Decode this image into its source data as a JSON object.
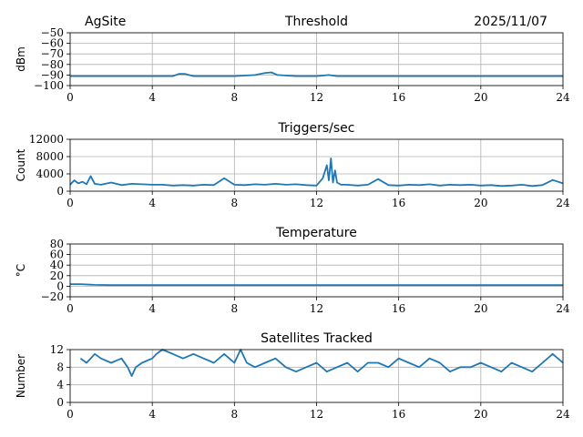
{
  "header": {
    "site": "AgSite",
    "date": "2025/11/07"
  },
  "series_color": "#1f77b4",
  "chart_data": [
    {
      "type": "line",
      "title": "Threshold",
      "ylabel": "dBm",
      "xlim": [
        0,
        24
      ],
      "ylim": [
        -100,
        -50
      ],
      "x_ticks": [
        0,
        4,
        8,
        12,
        16,
        20,
        24
      ],
      "y_ticks": [
        -100,
        -90,
        -80,
        -70,
        -60,
        -50
      ],
      "grid": true,
      "series": [
        {
          "x": [
            0,
            1,
            2,
            3,
            4,
            5,
            5.3,
            5.6,
            6,
            7,
            8,
            9,
            9.5,
            9.8,
            10.1,
            11,
            12,
            12.6,
            13,
            14,
            15,
            16,
            17,
            18,
            19,
            20,
            21,
            22,
            23,
            24
          ],
          "values": [
            -91,
            -91,
            -91,
            -91,
            -91,
            -91,
            -89,
            -89,
            -91,
            -91,
            -91,
            -90,
            -88,
            -87.5,
            -90,
            -91,
            -91,
            -90,
            -91,
            -91,
            -91,
            -91,
            -91,
            -91,
            -91,
            -91,
            -91,
            -91,
            -91,
            -91
          ]
        }
      ]
    },
    {
      "type": "line",
      "title": "Triggers/sec",
      "ylabel": "Count",
      "xlim": [
        0,
        24
      ],
      "ylim": [
        0,
        12000
      ],
      "x_ticks": [
        0,
        4,
        8,
        12,
        16,
        20,
        24
      ],
      "y_ticks": [
        0,
        4000,
        8000,
        12000
      ],
      "grid": true,
      "series": [
        {
          "x": [
            0,
            0.2,
            0.4,
            0.6,
            0.8,
            1,
            1.2,
            1.5,
            2,
            2.5,
            3,
            3.5,
            4,
            4.5,
            5,
            5.5,
            6,
            6.5,
            7,
            7.5,
            8,
            8.5,
            9,
            9.5,
            10,
            10.5,
            11,
            11.5,
            12,
            12.3,
            12.5,
            12.6,
            12.7,
            12.8,
            12.9,
            13,
            13.2,
            13.5,
            14,
            14.5,
            15,
            15.5,
            16,
            16.5,
            17,
            17.5,
            18,
            18.5,
            19,
            19.5,
            20,
            20.5,
            21,
            21.5,
            22,
            22.5,
            23,
            23.5,
            24
          ],
          "values": [
            1500,
            2500,
            1800,
            2200,
            1600,
            3500,
            1700,
            1500,
            2000,
            1400,
            1700,
            1600,
            1500,
            1500,
            1300,
            1400,
            1300,
            1500,
            1400,
            3000,
            1500,
            1400,
            1600,
            1500,
            1700,
            1500,
            1600,
            1400,
            1300,
            3000,
            6000,
            2500,
            7600,
            2000,
            4800,
            2000,
            1500,
            1500,
            1300,
            1500,
            2800,
            1400,
            1300,
            1500,
            1400,
            1600,
            1300,
            1500,
            1400,
            1500,
            1300,
            1400,
            1200,
            1300,
            1500,
            1200,
            1400,
            2600,
            1800
          ]
        }
      ]
    },
    {
      "type": "line",
      "title": "Temperature",
      "ylabel": "°C",
      "xlim": [
        0,
        24
      ],
      "ylim": [
        -20,
        80
      ],
      "x_ticks": [
        0,
        4,
        8,
        12,
        16,
        20,
        24
      ],
      "y_ticks": [
        -20,
        0,
        20,
        40,
        60,
        80
      ],
      "grid": true,
      "series": [
        {
          "x": [
            0,
            0.5,
            1,
            1.2,
            2,
            4,
            8,
            12,
            16,
            20,
            24
          ],
          "values": [
            4,
            4,
            3,
            2.5,
            2,
            2,
            2,
            2,
            2,
            2,
            2
          ]
        }
      ]
    },
    {
      "type": "line",
      "title": "Satellites Tracked",
      "ylabel": "Number",
      "xlim": [
        0,
        24
      ],
      "ylim": [
        0,
        12
      ],
      "x_ticks": [
        0,
        4,
        8,
        12,
        16,
        20,
        24
      ],
      "y_ticks": [
        0,
        4,
        8,
        12
      ],
      "grid": true,
      "series": [
        {
          "x": [
            0.5,
            0.8,
            1,
            1.2,
            1.5,
            2,
            2.5,
            2.8,
            3,
            3.2,
            3.5,
            4,
            4.2,
            4.5,
            5,
            5.5,
            6,
            6.5,
            7,
            7.5,
            8,
            8.3,
            8.6,
            9,
            9.5,
            10,
            10.5,
            11,
            11.5,
            12,
            12.5,
            13,
            13.5,
            14,
            14.5,
            15,
            15.5,
            16,
            16.5,
            17,
            17.5,
            18,
            18.5,
            19,
            19.5,
            20,
            20.5,
            21,
            21.5,
            22,
            22.5,
            23,
            23.5,
            24
          ],
          "values": [
            10,
            9,
            10,
            11,
            10,
            9,
            10,
            8,
            6,
            8,
            9,
            10,
            11,
            12,
            11,
            10,
            11,
            10,
            9,
            11,
            9,
            12,
            9,
            8,
            9,
            10,
            8,
            7,
            8,
            9,
            7,
            8,
            9,
            7,
            9,
            9,
            8,
            10,
            9,
            8,
            10,
            9,
            7,
            8,
            8,
            9,
            8,
            7,
            9,
            8,
            7,
            9,
            11,
            9
          ]
        }
      ]
    }
  ]
}
